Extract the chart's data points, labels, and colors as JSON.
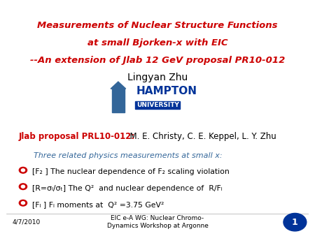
{
  "title_line1": "Measurements of Nuclear Structure Functions",
  "title_line2": "at small Bjorken-x with EIC",
  "title_line3": "--An extension of Jlab 12 GeV proposal PR10-012",
  "title_color": "#cc0000",
  "author": "Lingyan Zhu",
  "author_color": "#000000",
  "jlab_bold": "Jlab proposal PRL10-012:",
  "jlab_bold_color": "#cc0000",
  "jlab_rest": "  M. E. Christy, C. E. Keppel, L. Y. Zhu",
  "jlab_rest_color": "#000000",
  "physics_intro": "Three related physics measurements at small x:",
  "physics_intro_color": "#336699",
  "bullet_color": "#cc0000",
  "bullets": [
    "[F₂ ] The nuclear dependence of F₂ scaling violation",
    "[R=σₗ/σₜ] The Q²  and nuclear dependence of  R/Fₗ",
    "[Fₗ ] Fₗ moments at  Q² =3.75 GeV²"
  ],
  "bullet_text_color": "#000000",
  "footer_left": "4/7/2010",
  "footer_center": "EIC e-A WG: Nuclear Chromo-\nDynamics Workshop at Argonne",
  "footer_color": "#000000",
  "page_num": "1",
  "page_num_bg": "#003399",
  "page_num_color": "#ffffff",
  "bg_color": "#ffffff",
  "hampton_text": "HAMPTON\nUNIVERSITY",
  "hampton_color": "#003399"
}
